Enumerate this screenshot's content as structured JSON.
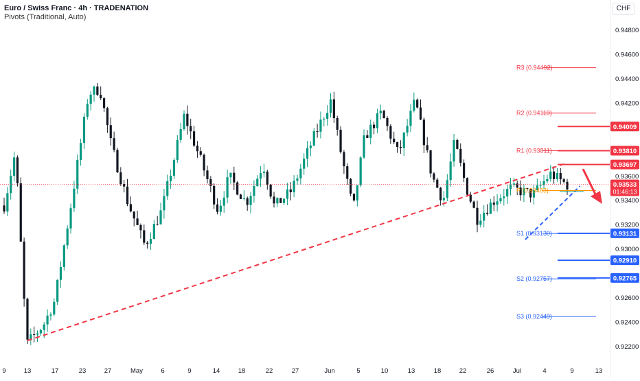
{
  "header": {
    "title": "Euro / Swiss Franc · 4h · TRADENATION",
    "indicator": "Pivots (Traditional, Auto)",
    "currency": "CHF"
  },
  "chart_data": {
    "type": "candlestick",
    "ylim": [
      0.9215,
      0.9505
    ],
    "grid": false,
    "y_ticks": [
      {
        "v": 0.948,
        "label": "0.94800"
      },
      {
        "v": 0.946,
        "label": "0.94600"
      },
      {
        "v": 0.944,
        "label": "0.94400"
      },
      {
        "v": 0.942,
        "label": "0.94200"
      },
      {
        "v": 0.936,
        "label": "0.93600"
      },
      {
        "v": 0.934,
        "label": "0.93400"
      },
      {
        "v": 0.932,
        "label": "0.93200"
      },
      {
        "v": 0.93,
        "label": "0.93000"
      },
      {
        "v": 0.926,
        "label": "0.92600"
      },
      {
        "v": 0.924,
        "label": "0.92400"
      },
      {
        "v": 0.922,
        "label": "0.92200"
      }
    ],
    "x_ticks": [
      "9",
      "13",
      "17",
      "23",
      "27",
      "May",
      "6",
      "9",
      "14",
      "18",
      "22",
      "27",
      "Jun",
      "5",
      "10",
      "13",
      "18",
      "22",
      "26",
      "Jul",
      "4",
      "9",
      "13"
    ],
    "pivots": [
      {
        "label": "R3 (0.94492)",
        "value": 0.94492,
        "color": "#f23645"
      },
      {
        "label": "R2 (0.94119)",
        "value": 0.94119,
        "color": "#f23645"
      },
      {
        "label": "R1 (0.93811)",
        "value": 0.93811,
        "color": "#f23645"
      },
      {
        "label": "P (0.93483)",
        "value": 0.93483,
        "color": "#ff9800"
      },
      {
        "label": "S1 (0.93130)",
        "value": 0.9313,
        "color": "#2962ff"
      },
      {
        "label": "S2 (0.92757)",
        "value": 0.92757,
        "color": "#2962ff"
      },
      {
        "label": "S3 (0.92449)",
        "value": 0.92449,
        "color": "#2962ff"
      }
    ],
    "levels": [
      {
        "value": 0.94009,
        "label": "0.94009",
        "color": "#f23645"
      },
      {
        "value": 0.9381,
        "label": "0.93810",
        "color": "#f23645"
      },
      {
        "value": 0.93697,
        "label": "0.93697",
        "color": "#f23645"
      },
      {
        "value": 0.93131,
        "label": "0.93131",
        "color": "#2962ff"
      },
      {
        "value": 0.9291,
        "label": "0.92910",
        "color": "#2962ff"
      },
      {
        "value": 0.92765,
        "label": "0.92765",
        "color": "#2962ff"
      }
    ],
    "current_price": {
      "value": 0.93533,
      "label": "0.93533",
      "countdown": "01:46:13",
      "color": "#f23645"
    },
    "last_close": 0.9353,
    "colors": {
      "up": "#089981",
      "down": "#131722",
      "resistance": "#f23645",
      "support": "#2962ff",
      "pivot_p": "#ff9800",
      "arrow": "#f23645"
    },
    "path_points": [
      {
        "t": 0.0,
        "p": 0.9336
      },
      {
        "t": 0.02,
        "p": 0.938
      },
      {
        "t": 0.04,
        "p": 0.9222
      },
      {
        "t": 0.07,
        "p": 0.9238
      },
      {
        "t": 0.09,
        "p": 0.9258
      },
      {
        "t": 0.12,
        "p": 0.934
      },
      {
        "t": 0.15,
        "p": 0.9428
      },
      {
        "t": 0.17,
        "p": 0.9432
      },
      {
        "t": 0.19,
        "p": 0.9386
      },
      {
        "t": 0.22,
        "p": 0.9338
      },
      {
        "t": 0.25,
        "p": 0.9303
      },
      {
        "t": 0.28,
        "p": 0.9332
      },
      {
        "t": 0.32,
        "p": 0.941
      },
      {
        "t": 0.35,
        "p": 0.9372
      },
      {
        "t": 0.38,
        "p": 0.9332
      },
      {
        "t": 0.4,
        "p": 0.936
      },
      {
        "t": 0.43,
        "p": 0.9338
      },
      {
        "t": 0.46,
        "p": 0.937
      },
      {
        "t": 0.48,
        "p": 0.9335
      },
      {
        "t": 0.51,
        "p": 0.9348
      },
      {
        "t": 0.55,
        "p": 0.9392
      },
      {
        "t": 0.58,
        "p": 0.9422
      },
      {
        "t": 0.6,
        "p": 0.9375
      },
      {
        "t": 0.62,
        "p": 0.9332
      },
      {
        "t": 0.64,
        "p": 0.9392
      },
      {
        "t": 0.67,
        "p": 0.9412
      },
      {
        "t": 0.7,
        "p": 0.9378
      },
      {
        "t": 0.73,
        "p": 0.9422
      },
      {
        "t": 0.76,
        "p": 0.936
      },
      {
        "t": 0.78,
        "p": 0.934
      },
      {
        "t": 0.8,
        "p": 0.9388
      },
      {
        "t": 0.82,
        "p": 0.9352
      },
      {
        "t": 0.84,
        "p": 0.9325
      },
      {
        "t": 0.87,
        "p": 0.934
      },
      {
        "t": 0.9,
        "p": 0.935
      },
      {
        "t": 0.94,
        "p": 0.9345
      },
      {
        "t": 0.97,
        "p": 0.9362
      },
      {
        "t": 1.0,
        "p": 0.9353
      }
    ],
    "trendlines": [
      {
        "name": "ascending-support-trendline",
        "x1_tick": 1,
        "p1": 0.9225,
        "x2_tick": 20.7,
        "p2": 0.937,
        "color": "#f23645",
        "dash": "7,5"
      },
      {
        "name": "short-term-support-trendline",
        "x1_tick": 19.3,
        "p1": 0.9308,
        "x2_tick": 21.3,
        "p2": 0.9352,
        "color": "#2962ff",
        "dash": "6,4"
      }
    ]
  }
}
